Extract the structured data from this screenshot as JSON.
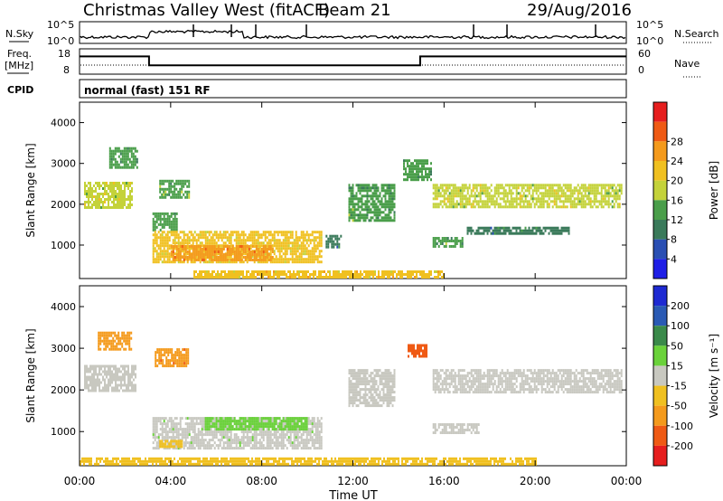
{
  "header": {
    "station": "Christmas Valley West (fitACF)",
    "beam": "Beam 21",
    "date": "29/Aug/2016"
  },
  "nsky": {
    "label": "N.Sky",
    "tick_top": "10^5",
    "tick_bottom": "10^0",
    "search_label": "N.Search"
  },
  "freq": {
    "label_line1": "Freq.",
    "label_line2": "[MHz]",
    "tick_top": "18",
    "tick_bottom": "8",
    "nave_label": "Nave",
    "nave_tick_top": "60",
    "nave_tick_bottom": "0",
    "segments": [
      {
        "t0": 0,
        "t1": 3.05,
        "freq": 15
      },
      {
        "t0": 3.05,
        "t1": 14.95,
        "freq": 11.5
      },
      {
        "t0": 14.95,
        "t1": 24,
        "freq": 15
      }
    ]
  },
  "cpid": {
    "label": "CPID",
    "value": "normal (fast) 151 RF"
  },
  "chart_data": [
    {
      "type": "heatmap",
      "name": "power",
      "xlabel": "Time UT",
      "ylabel": "Slant Range [km]",
      "xlim": [
        0,
        24
      ],
      "ylim": [
        180,
        4500
      ],
      "yticks": [
        1000,
        2000,
        3000,
        4000
      ],
      "xticks": [
        0,
        4,
        8,
        12,
        16,
        20,
        24
      ],
      "xtick_labels": [
        "00:00",
        "04:00",
        "08:00",
        "12:00",
        "16:00",
        "20:00",
        "00:00"
      ],
      "colorbar": {
        "label": "Power [dB]",
        "ticks": [
          4,
          8,
          12,
          16,
          20,
          24,
          28
        ],
        "colors": [
          "#1e1ee6",
          "#2a4fb3",
          "#3a7a5a",
          "#4a9e4a",
          "#c4d23a",
          "#f0c020",
          "#f49a1c",
          "#ef5a14",
          "#e61e1e"
        ]
      },
      "regions": [
        {
          "t0": 0.2,
          "t1": 2.3,
          "r_lo": 1950,
          "r_hi": 2550,
          "value": 18
        },
        {
          "t0": 1.3,
          "t1": 2.5,
          "r_lo": 2900,
          "r_hi": 3400,
          "value": 12
        },
        {
          "t0": 3.2,
          "t1": 4.3,
          "r_lo": 1350,
          "r_hi": 1800,
          "value": 12
        },
        {
          "t0": 3.5,
          "t1": 4.8,
          "r_lo": 2150,
          "r_hi": 2600,
          "value": 14
        },
        {
          "t0": 3.2,
          "t1": 10.6,
          "r_lo": 600,
          "r_hi": 1350,
          "value": 20
        },
        {
          "t0": 4.0,
          "t1": 8.5,
          "r_lo": 620,
          "r_hi": 1000,
          "value": 27
        },
        {
          "t0": 10.8,
          "t1": 11.5,
          "r_lo": 950,
          "r_hi": 1250,
          "value": 9
        },
        {
          "t0": 11.8,
          "t1": 13.8,
          "r_lo": 1600,
          "r_hi": 2500,
          "value": 13
        },
        {
          "t0": 14.2,
          "t1": 15.4,
          "r_lo": 2600,
          "r_hi": 3100,
          "value": 12
        },
        {
          "t0": 15.5,
          "t1": 16.8,
          "r_lo": 1000,
          "r_hi": 1200,
          "value": 13
        },
        {
          "t0": 15.5,
          "t1": 23.8,
          "r_lo": 1950,
          "r_hi": 2500,
          "value": 19
        },
        {
          "t0": 17.0,
          "t1": 21.5,
          "r_lo": 1300,
          "r_hi": 1450,
          "value": 11
        },
        {
          "t0": 5.0,
          "t1": 16.0,
          "r_lo": 220,
          "r_hi": 380,
          "value": 22
        }
      ]
    },
    {
      "type": "heatmap",
      "name": "velocity",
      "xlabel": "Time UT",
      "ylabel": "Slant Range [km]",
      "xlim": [
        0,
        24
      ],
      "ylim": [
        180,
        4500
      ],
      "yticks": [
        1000,
        2000,
        3000,
        4000
      ],
      "xticks": [
        0,
        4,
        8,
        12,
        16,
        20,
        24
      ],
      "xtick_labels": [
        "00:00",
        "04:00",
        "08:00",
        "12:00",
        "16:00",
        "20:00",
        "00:00"
      ],
      "colorbar": {
        "label": "Velocity [m s⁻¹]",
        "ticks": [
          200,
          100,
          50,
          15,
          -15,
          -50,
          -100,
          -200
        ],
        "colors": [
          "#1e2ad2",
          "#2a5ab4",
          "#3a8a4a",
          "#6ad23a",
          "#c8c8c0",
          "#f0c020",
          "#f49a1c",
          "#ef5a14",
          "#e61e1e"
        ]
      },
      "regions": [
        {
          "t0": 0.2,
          "t1": 2.5,
          "r_lo": 1950,
          "r_hi": 2600,
          "value": 0
        },
        {
          "t0": 0.8,
          "t1": 2.3,
          "r_lo": 2950,
          "r_hi": 3400,
          "value": -80
        },
        {
          "t0": 3.3,
          "t1": 4.8,
          "r_lo": 2600,
          "r_hi": 3000,
          "value": -90
        },
        {
          "t0": 3.2,
          "t1": 10.6,
          "r_lo": 600,
          "r_hi": 1350,
          "value": 5
        },
        {
          "t0": 5.5,
          "t1": 10.0,
          "r_lo": 1050,
          "r_hi": 1350,
          "value": 35
        },
        {
          "t0": 3.5,
          "t1": 4.5,
          "r_lo": 650,
          "r_hi": 800,
          "value": -40
        },
        {
          "t0": 11.8,
          "t1": 13.8,
          "r_lo": 1600,
          "r_hi": 2500,
          "value": 0
        },
        {
          "t0": 14.4,
          "t1": 15.2,
          "r_lo": 2800,
          "r_hi": 3100,
          "value": -180
        },
        {
          "t0": 15.5,
          "t1": 23.8,
          "r_lo": 1950,
          "r_hi": 2500,
          "value": 0
        },
        {
          "t0": 15.5,
          "t1": 17.5,
          "r_lo": 950,
          "r_hi": 1200,
          "value": 0
        },
        {
          "t0": 0.0,
          "t1": 20.0,
          "r_lo": 220,
          "r_hi": 380,
          "value": -30
        }
      ]
    }
  ]
}
